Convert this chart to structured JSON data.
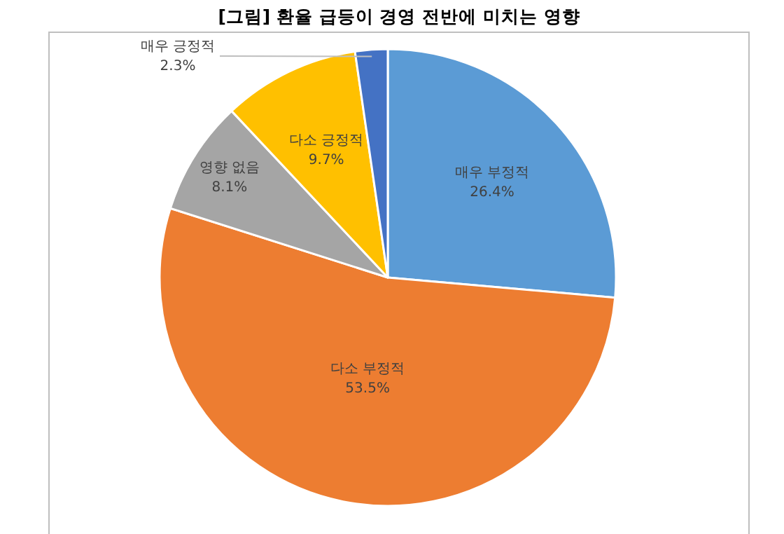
{
  "chart_data": {
    "type": "pie",
    "title": "[그림] 환율 급등이 경영 전반에 미치는 영향",
    "categories": [
      "매우 부정적",
      "다소 부정적",
      "영향 없음",
      "다소 긍정적",
      "매우 긍정적"
    ],
    "values": [
      26.4,
      53.5,
      8.1,
      9.7,
      2.3
    ],
    "value_labels": [
      "26.4%",
      "53.5%",
      "8.1%",
      "9.7%",
      "2.3%"
    ],
    "colors": [
      "#5b9bd5",
      "#ed7d31",
      "#a5a5a5",
      "#ffc000",
      "#4472c4"
    ]
  }
}
